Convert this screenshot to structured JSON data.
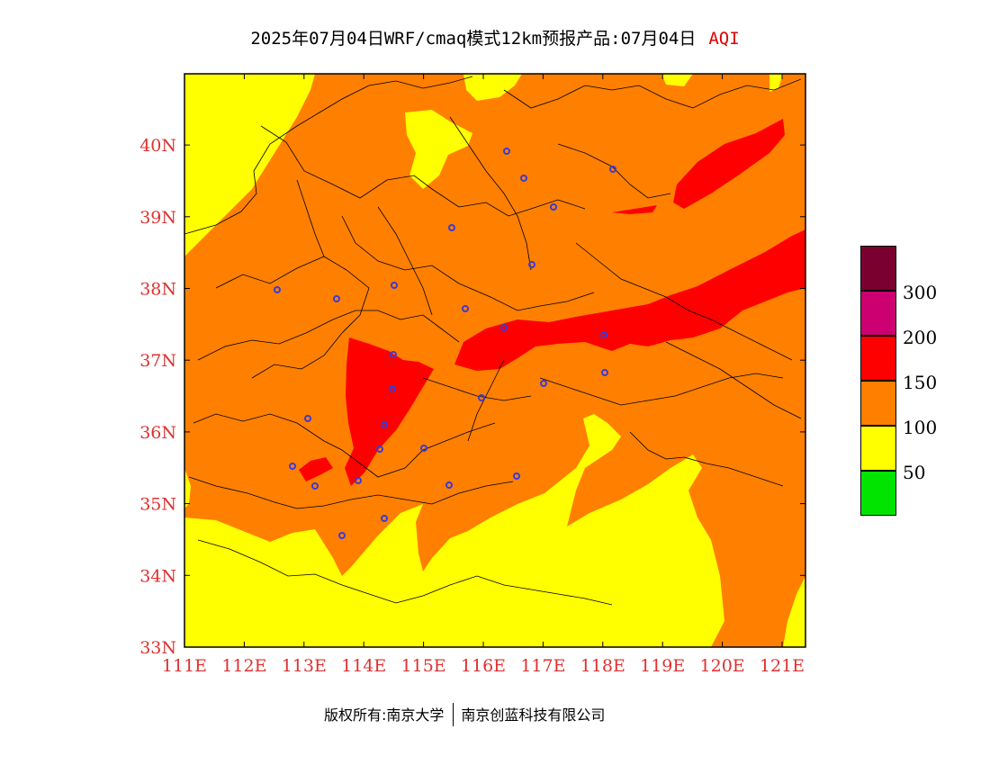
{
  "title": {
    "main": "2025年07月04日WRF/cmaq模式12km预报产品:07月04日",
    "variable": "AQI"
  },
  "footer": {
    "left": "版权所有:南京大学",
    "right": "南京创蓝科技有限公司"
  },
  "map": {
    "lon_labels": [
      "111E",
      "112E",
      "113E",
      "114E",
      "115E",
      "116E",
      "117E",
      "118E",
      "119E",
      "120E",
      "121E"
    ],
    "lat_labels": [
      "33N",
      "34N",
      "35N",
      "36N",
      "37N",
      "38N",
      "39N",
      "40N"
    ],
    "axis_label_color": "#e03030"
  },
  "legend": {
    "colors": [
      "#7a0030",
      "#cc0070",
      "#ff0000",
      "#ff7f00",
      "#ffff00",
      "#00e400"
    ],
    "labels": [
      "300",
      "200",
      "150",
      "100",
      "50"
    ]
  },
  "colors": {
    "good": "#00e400",
    "moderate": "#ffff00",
    "usg": "#ff7f00",
    "unhealthy": "#ff0000"
  }
}
